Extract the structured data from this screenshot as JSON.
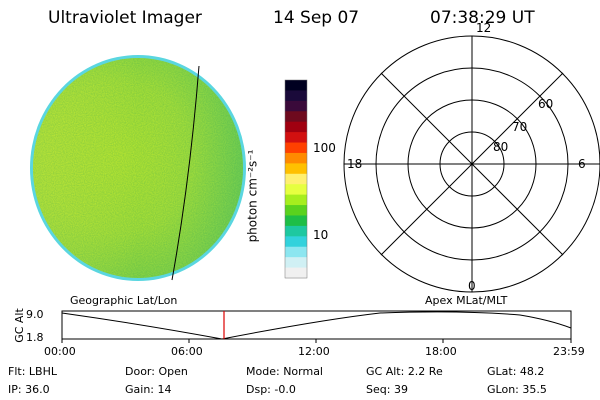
{
  "header": {
    "title": "Ultraviolet Imager",
    "date": "14 Sep 07",
    "time": "07:38:29 UT"
  },
  "colorbar": {
    "unit_label": "photon cm⁻²s⁻¹",
    "ticks": [
      "100",
      "10"
    ],
    "colors": [
      "#000020",
      "#1a0a3a",
      "#3a0a3a",
      "#6e0a1e",
      "#a00010",
      "#d21010",
      "#ff4000",
      "#ff8a00",
      "#ffc000",
      "#fff070",
      "#e6ff40",
      "#a6ee1e",
      "#5ad21e",
      "#1ebe46",
      "#1ec8a0",
      "#32d2dc",
      "#8ce6f0",
      "#d0f0f4",
      "#f0f0f0"
    ]
  },
  "image_panel": {
    "disk_colors": {
      "left": "#d8f030",
      "center": "#c4ec2c",
      "right": "#96dc3c",
      "edge": "#5ad6e0"
    },
    "caption": "Geographic Lat/Lon"
  },
  "polar_panel": {
    "mlt_labels": {
      "top": "12",
      "left": "18",
      "right": "6",
      "bottom": "0"
    },
    "lat_labels": [
      "60",
      "70",
      "80"
    ],
    "caption": "Apex MLat/MLT"
  },
  "altitude_strip": {
    "axis_label": "GC Alt",
    "y_ticks": [
      "9.0",
      "1.8"
    ],
    "x_ticks": [
      "00:00",
      "06:00",
      "12:00",
      "18:00",
      "23:59"
    ],
    "marker_time": "07:38",
    "marker_color": "#dd0000"
  },
  "status": {
    "row1": [
      {
        "label": "Flt:",
        "value": "LBHL"
      },
      {
        "label": "Door:",
        "value": "Open"
      },
      {
        "label": "Mode:",
        "value": "Normal"
      },
      {
        "label": "GC Alt:",
        "value": "2.2 Re"
      },
      {
        "label": "GLat:",
        "value": "48.2"
      }
    ],
    "row2": [
      {
        "label": "IP:",
        "value": "36.0"
      },
      {
        "label": "Gain:",
        "value": "14"
      },
      {
        "label": "Dsp:",
        "value": "-0.0"
      },
      {
        "label": "Seq:",
        "value": "39"
      },
      {
        "label": "GLon:",
        "value": "35.5"
      }
    ]
  }
}
